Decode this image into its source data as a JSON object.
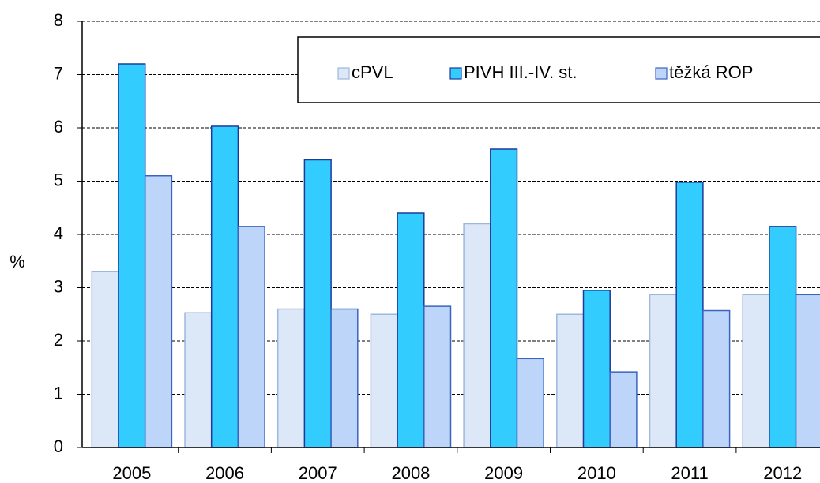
{
  "chart_data": {
    "type": "bar",
    "y_label": "%",
    "categories": [
      "2005",
      "2006",
      "2007",
      "2008",
      "2009",
      "2010",
      "2011",
      "2012"
    ],
    "series": [
      {
        "name": "cPVL",
        "color": "#dce7f7",
        "values": [
          3.3,
          2.53,
          2.6,
          2.5,
          4.2,
          2.5,
          2.87,
          2.87
        ]
      },
      {
        "name": "PIVH III.-IV. st.",
        "color": "#33ccff",
        "values": [
          7.2,
          6.03,
          5.4,
          4.4,
          5.6,
          2.95,
          4.98,
          4.15
        ]
      },
      {
        "name": "těžká ROP",
        "color": "#bcd5f8",
        "values": [
          5.1,
          4.15,
          2.6,
          2.65,
          1.67,
          1.42,
          2.57,
          2.87
        ]
      }
    ],
    "ylim": [
      0,
      8
    ],
    "yticks": [
      0,
      1,
      2,
      3,
      4,
      5,
      6,
      7,
      8
    ],
    "grid": true,
    "legend": "top-right"
  }
}
